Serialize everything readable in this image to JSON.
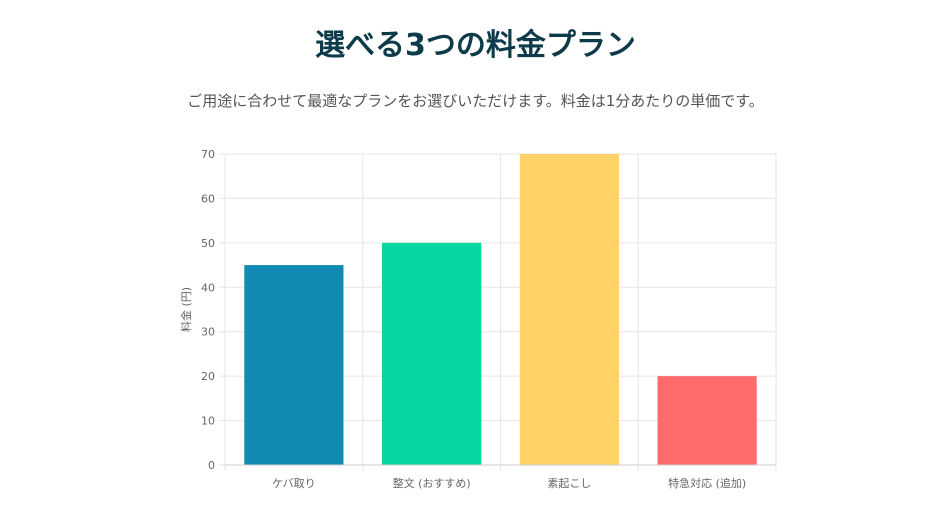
{
  "header": {
    "title": "選べる3つの料金プラン",
    "subtitle": "ご用途に合わせて最適なプランをお選びいただけます。料金は1分あたりの単価です。"
  },
  "chart_data": {
    "type": "bar",
    "categories": [
      "ケバ取り",
      "整文 (おすすめ)",
      "素起こし",
      "特急対応 (追加)"
    ],
    "values": [
      45,
      50,
      70,
      20
    ],
    "colors": [
      "#138ab4",
      "#06d6a0",
      "#ffd166",
      "#ff6b6b"
    ],
    "ylabel": "料金 (円)",
    "xlabel": "",
    "ylim": [
      0,
      70
    ],
    "yticks": [
      0,
      10,
      20,
      30,
      40,
      50,
      60,
      70
    ],
    "grid": true
  }
}
